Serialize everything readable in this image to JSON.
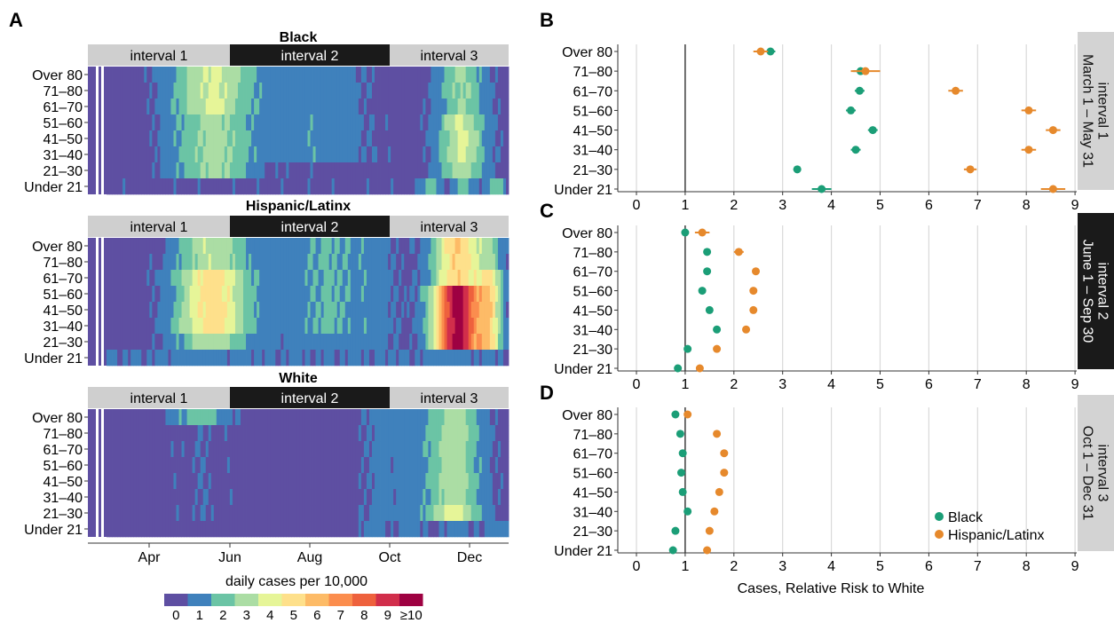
{
  "panel_labels": {
    "a": "A",
    "b": "B",
    "c": "C",
    "d": "D"
  },
  "age_groups": [
    "Over 80",
    "71–80",
    "61–70",
    "51–60",
    "41–50",
    "31–40",
    "21–30",
    "Under 21"
  ],
  "heatmap": {
    "interval_labels": [
      "interval 1",
      "interval 2",
      "interval 3"
    ],
    "month_labels": [
      "Apr",
      "Jun",
      "Aug",
      "Oct",
      "Dec"
    ],
    "legend_title": "daily cases per 10,000",
    "legend_labels": [
      "0",
      "1",
      "2",
      "3",
      "4",
      "5",
      "6",
      "7",
      "8",
      "9",
      "≥10"
    ],
    "legend_colors": [
      "#5e4fa2",
      "#3f81bc",
      "#6bc4a5",
      "#abdda4",
      "#e6f598",
      "#fee08b",
      "#fdbb67",
      "#fb8d4e",
      "#ee613d",
      "#d12e4b",
      "#9e0142"
    ],
    "panels": [
      {
        "title": "Black"
      },
      {
        "title": "Hispanic/Latinx"
      },
      {
        "title": "White"
      }
    ]
  },
  "chart_data": {
    "type": "scatter",
    "xlabel": "Cases, Relative Risk to White",
    "xlim": [
      0,
      9
    ],
    "xticks": [
      "0",
      "1",
      "2",
      "3",
      "4",
      "5",
      "6",
      "7",
      "8",
      "9"
    ],
    "reference_line": 1,
    "legend": [
      {
        "name": "Black",
        "color": "#1b9e77"
      },
      {
        "name": "Hispanic/Latinx",
        "color": "#e6892c"
      }
    ],
    "panels": [
      {
        "strip": "interval 1\nMarch 1 – May 31",
        "series": [
          {
            "name": "Black",
            "values": [
              2.75,
              4.6,
              4.58,
              4.4,
              4.85,
              4.5,
              3.3,
              3.8
            ],
            "ci_low": [
              2.65,
              4.45,
              4.48,
              4.3,
              4.75,
              4.4,
              3.22,
              3.6
            ],
            "ci_high": [
              2.85,
              4.75,
              4.68,
              4.5,
              4.95,
              4.6,
              3.38,
              4.0
            ]
          },
          {
            "name": "Hispanic/Latinx",
            "values": [
              2.55,
              4.7,
              6.55,
              8.05,
              8.55,
              8.05,
              6.85,
              8.55
            ],
            "ci_low": [
              2.4,
              4.4,
              6.4,
              7.9,
              8.4,
              7.9,
              6.72,
              8.3
            ],
            "ci_high": [
              2.7,
              5.0,
              6.7,
              8.2,
              8.7,
              8.2,
              6.98,
              8.8
            ]
          }
        ]
      },
      {
        "strip": "interval 2\nJune 1 – Sep 30",
        "series": [
          {
            "name": "Black",
            "values": [
              1.0,
              1.45,
              1.45,
              1.35,
              1.5,
              1.65,
              1.05,
              0.85
            ],
            "ci_low": [
              0.95,
              1.38,
              1.4,
              1.3,
              1.45,
              1.6,
              1.0,
              0.78
            ],
            "ci_high": [
              1.05,
              1.52,
              1.5,
              1.4,
              1.55,
              1.7,
              1.1,
              0.92
            ]
          },
          {
            "name": "Hispanic/Latinx",
            "values": [
              1.35,
              2.1,
              2.45,
              2.4,
              2.4,
              2.25,
              1.65,
              1.3
            ],
            "ci_low": [
              1.2,
              2.0,
              2.4,
              2.35,
              2.35,
              2.2,
              1.6,
              1.25
            ],
            "ci_high": [
              1.5,
              2.2,
              2.5,
              2.45,
              2.45,
              2.3,
              1.7,
              1.35
            ]
          }
        ]
      },
      {
        "strip": "interval 3\nOct 1 – Dec 31",
        "series": [
          {
            "name": "Black",
            "values": [
              0.8,
              0.9,
              0.95,
              0.92,
              0.95,
              1.05,
              0.8,
              0.75
            ],
            "ci_low": [
              0.76,
              0.86,
              0.91,
              0.88,
              0.91,
              1.01,
              0.76,
              0.71
            ],
            "ci_high": [
              0.84,
              0.94,
              0.99,
              0.96,
              0.99,
              1.09,
              0.84,
              0.79
            ]
          },
          {
            "name": "Hispanic/Latinx",
            "values": [
              1.05,
              1.65,
              1.8,
              1.8,
              1.7,
              1.6,
              1.5,
              1.45
            ],
            "ci_low": [
              1.0,
              1.6,
              1.75,
              1.75,
              1.65,
              1.55,
              1.45,
              1.4
            ],
            "ci_high": [
              1.1,
              1.7,
              1.85,
              1.85,
              1.75,
              1.65,
              1.55,
              1.5
            ]
          }
        ]
      }
    ]
  }
}
